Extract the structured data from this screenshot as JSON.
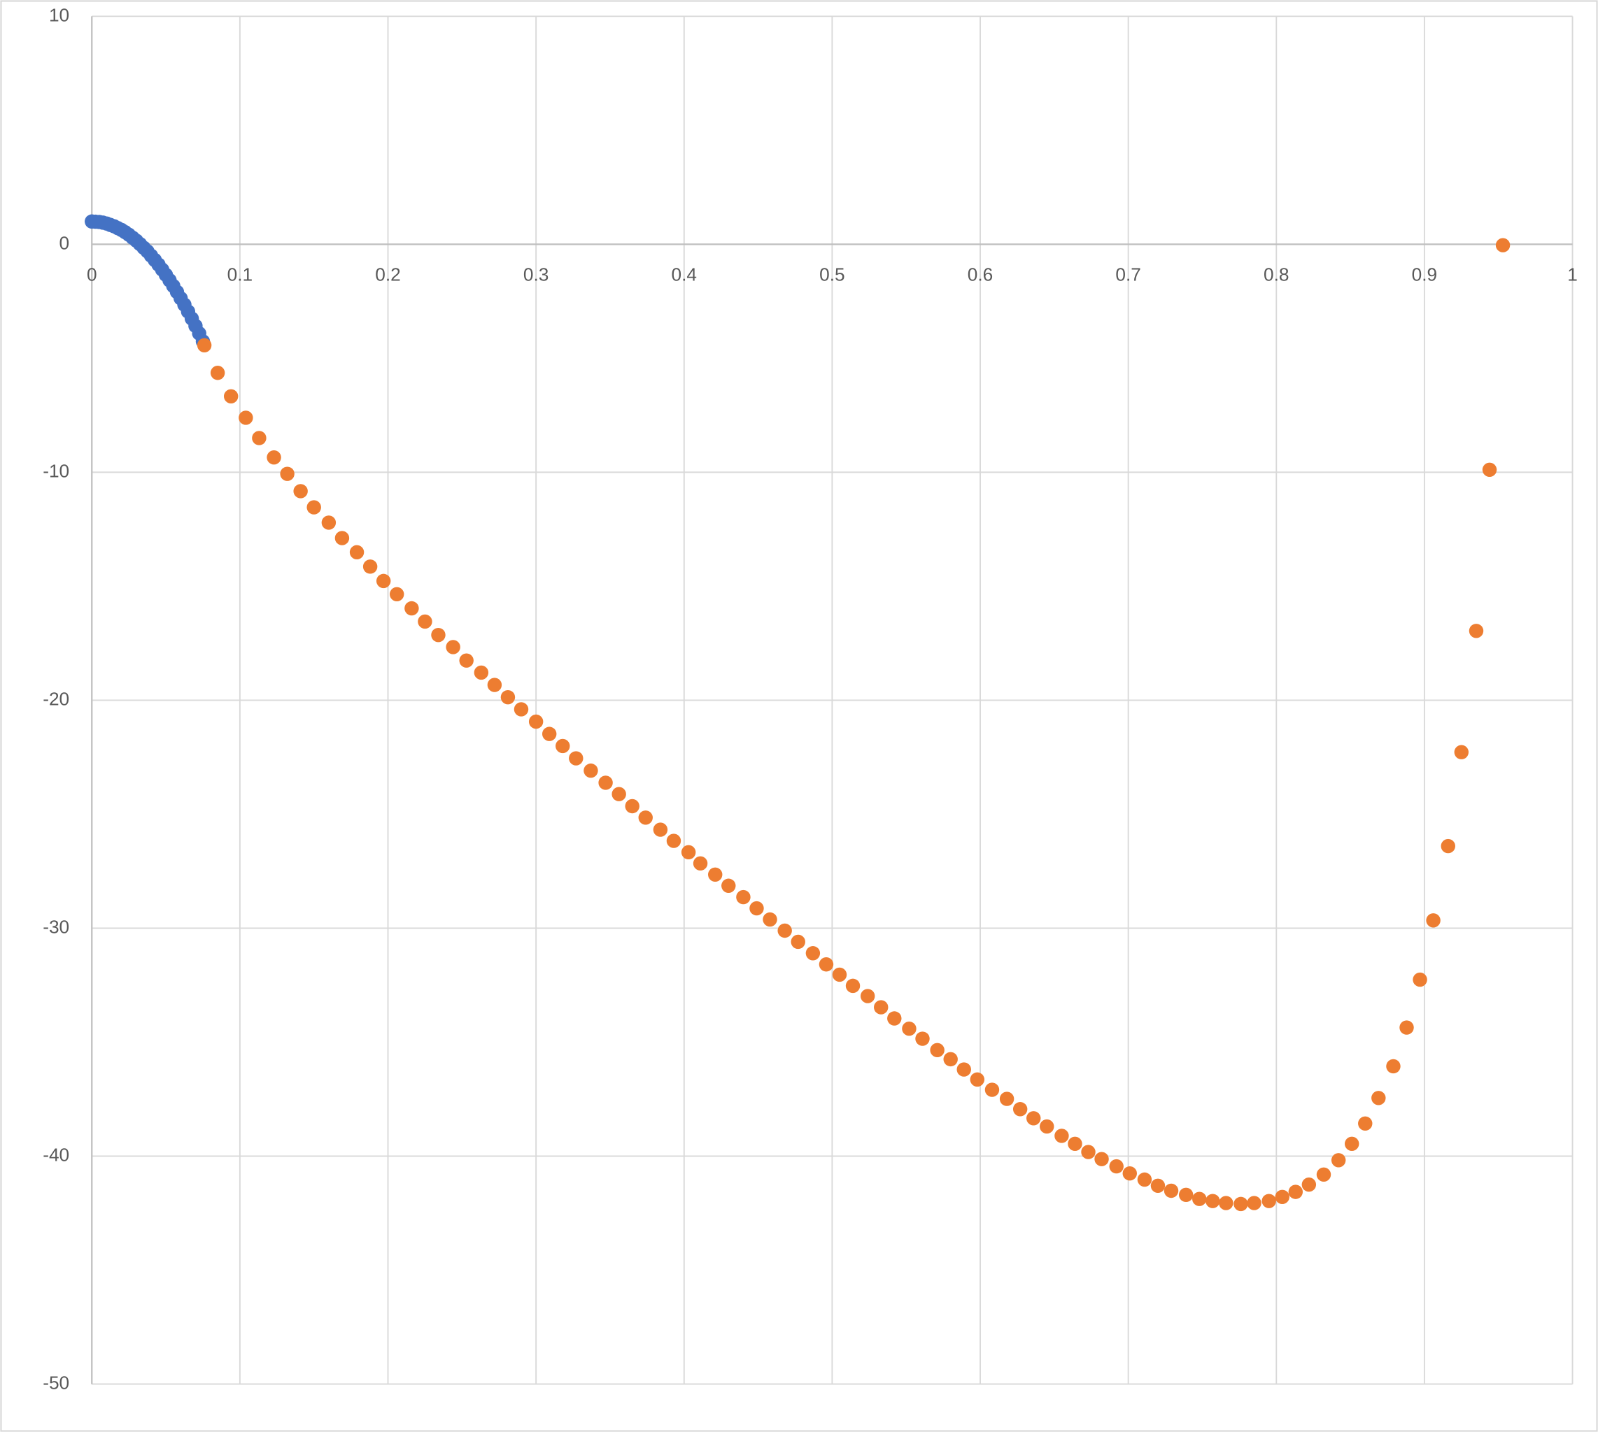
{
  "chart_data": {
    "type": "scatter",
    "xlim": [
      0,
      1
    ],
    "xticks": [
      0,
      0.1,
      0.2,
      0.3,
      0.4,
      0.5,
      0.6,
      0.7,
      0.8,
      0.9,
      1
    ],
    "ylim": [
      -50,
      10
    ],
    "yticks": [
      -50,
      -40,
      -30,
      -20,
      -10,
      0,
      10
    ],
    "grid": true,
    "series": [
      {
        "color": "#4472c4",
        "x": [
          0,
          0.0025,
          0.005,
          0.0075,
          0.01,
          0.0125,
          0.015,
          0.0175,
          0.02,
          0.0225,
          0.025,
          0.0275,
          0.03,
          0.0325,
          0.035,
          0.0375,
          0.04,
          0.0425,
          0.045,
          0.0475,
          0.05,
          0.0525,
          0.055,
          0.0575,
          0.06,
          0.0625,
          0.065,
          0.0675,
          0.07,
          0.0725,
          0.075
        ],
        "y": [
          1.0,
          0.99,
          0.98,
          0.95,
          0.91,
          0.85,
          0.79,
          0.71,
          0.63,
          0.53,
          0.42,
          0.29,
          0.16,
          0.01,
          -0.15,
          -0.31,
          -0.5,
          -0.69,
          -0.89,
          -1.11,
          -1.34,
          -1.58,
          -1.83,
          -2.09,
          -2.37,
          -2.65,
          -2.95,
          -3.26,
          -3.58,
          -3.91,
          -4.26
        ]
      },
      {
        "color": "#ed7d31",
        "x": [
          0.076,
          0.085,
          0.094,
          0.104,
          0.113,
          0.123,
          0.132,
          0.141,
          0.15,
          0.16,
          0.169,
          0.179,
          0.188,
          0.197,
          0.206,
          0.216,
          0.225,
          0.234,
          0.244,
          0.253,
          0.263,
          0.272,
          0.281,
          0.29,
          0.3,
          0.309,
          0.318,
          0.327,
          0.337,
          0.347,
          0.356,
          0.365,
          0.374,
          0.384,
          0.393,
          0.403,
          0.411,
          0.421,
          0.43,
          0.44,
          0.449,
          0.458,
          0.468,
          0.477,
          0.487,
          0.496,
          0.505,
          0.514,
          0.524,
          0.533,
          0.542,
          0.552,
          0.561,
          0.571,
          0.58,
          0.589,
          0.598,
          0.608,
          0.618,
          0.627,
          0.636,
          0.645,
          0.655,
          0.664,
          0.673,
          0.682,
          0.692,
          0.701,
          0.711,
          0.72,
          0.729,
          0.739,
          0.748,
          0.757,
          0.766,
          0.776,
          0.785,
          0.795,
          0.804,
          0.813,
          0.822,
          0.832,
          0.842,
          0.851,
          0.86,
          0.869,
          0.879,
          0.888,
          0.897,
          0.906,
          0.916,
          0.925,
          0.935,
          0.944,
          0.953
        ],
        "y": [
          -4.43,
          -5.64,
          -6.67,
          -7.61,
          -8.5,
          -9.35,
          -10.07,
          -10.83,
          -11.54,
          -12.21,
          -12.89,
          -13.51,
          -14.14,
          -14.77,
          -15.35,
          -15.97,
          -16.55,
          -17.14,
          -17.67,
          -18.26,
          -18.79,
          -19.33,
          -19.87,
          -20.4,
          -20.94,
          -21.48,
          -22.01,
          -22.55,
          -23.09,
          -23.62,
          -24.12,
          -24.65,
          -25.15,
          -25.68,
          -26.17,
          -26.67,
          -27.16,
          -27.65,
          -28.14,
          -28.64,
          -29.13,
          -29.62,
          -30.11,
          -30.6,
          -31.1,
          -31.59,
          -32.04,
          -32.53,
          -32.98,
          -33.47,
          -33.96,
          -34.41,
          -34.85,
          -35.35,
          -35.75,
          -36.2,
          -36.64,
          -37.09,
          -37.49,
          -37.94,
          -38.34,
          -38.7,
          -39.11,
          -39.46,
          -39.82,
          -40.13,
          -40.45,
          -40.76,
          -41.03,
          -41.3,
          -41.52,
          -41.7,
          -41.88,
          -41.97,
          -42.06,
          -42.1,
          -42.06,
          -41.97,
          -41.79,
          -41.57,
          -41.25,
          -40.81,
          -40.18,
          -39.46,
          -38.57,
          -37.45,
          -36.06,
          -34.36,
          -32.26,
          -29.66,
          -26.4,
          -22.28,
          -16.96,
          -9.89,
          -0.04
        ]
      }
    ]
  }
}
